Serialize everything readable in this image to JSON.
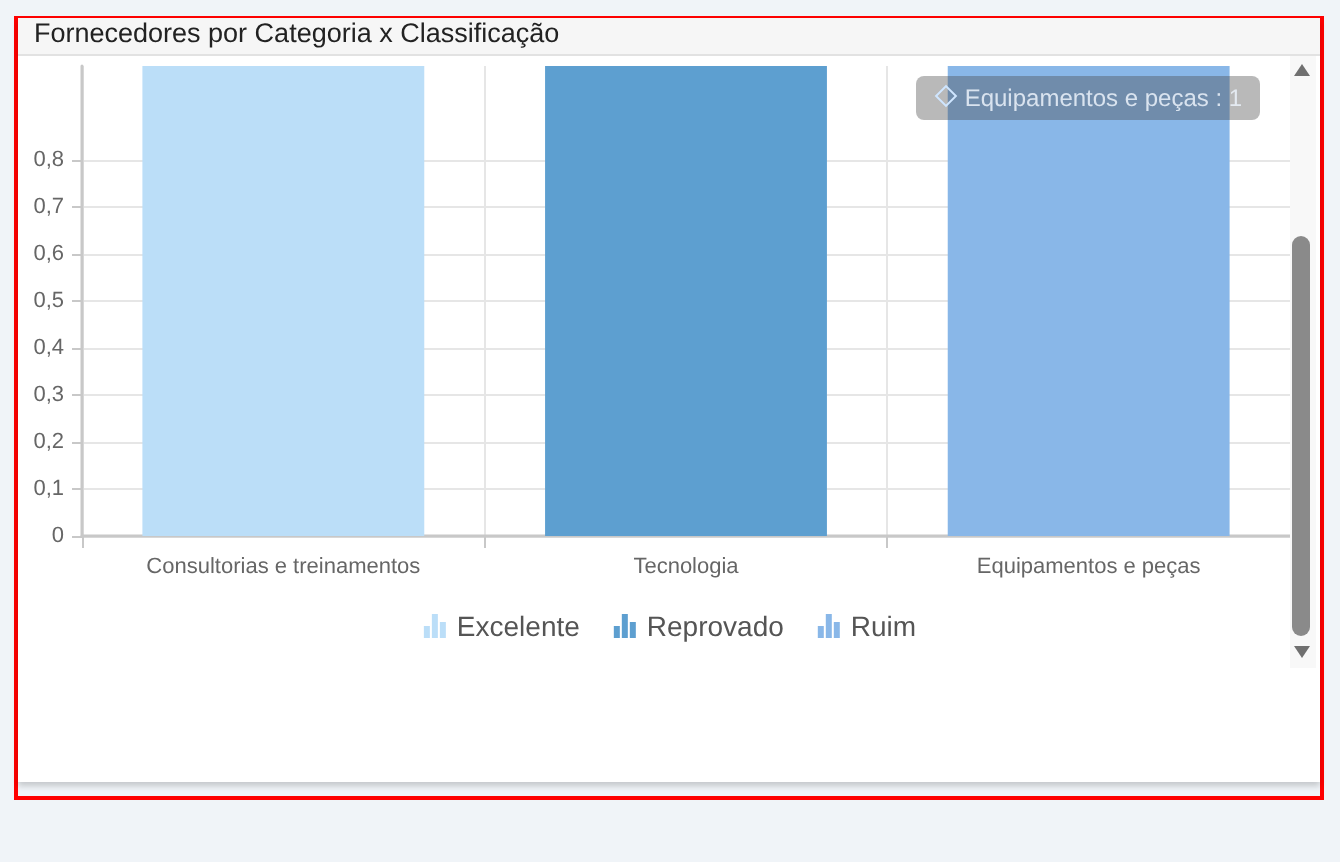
{
  "chart_data": {
    "type": "bar",
    "title": "Fornecedores por Categoria x Classificação",
    "categories": [
      "Consultorias e treinamentos",
      "Tecnologia",
      "Equipamentos e peças"
    ],
    "series": [
      {
        "name": "Excelente",
        "color": "#bbdef8",
        "values": [
          1,
          null,
          null
        ]
      },
      {
        "name": "Reprovado",
        "color": "#5d9fd0",
        "values": [
          null,
          1,
          null
        ]
      },
      {
        "name": "Ruim",
        "color": "#89b7e8",
        "values": [
          null,
          null,
          1
        ]
      }
    ],
    "stacked": true,
    "ylim": [
      0,
      1
    ],
    "yticks": [
      0,
      {
        "value": 0.1,
        "label": "0,1"
      },
      {
        "value": 0.2,
        "label": "0,2"
      },
      {
        "value": 0.3,
        "label": "0,3"
      },
      {
        "value": 0.4,
        "label": "0,4"
      },
      {
        "value": 0.5,
        "label": "0,5"
      },
      {
        "value": 0.6,
        "label": "0,6"
      },
      {
        "value": 0.7,
        "label": "0,7"
      },
      {
        "value": 0.8,
        "label": "0,8"
      }
    ],
    "grid": true,
    "legend": "bottom",
    "annotations": [
      "Equipamentos e peças : 1"
    ]
  }
}
